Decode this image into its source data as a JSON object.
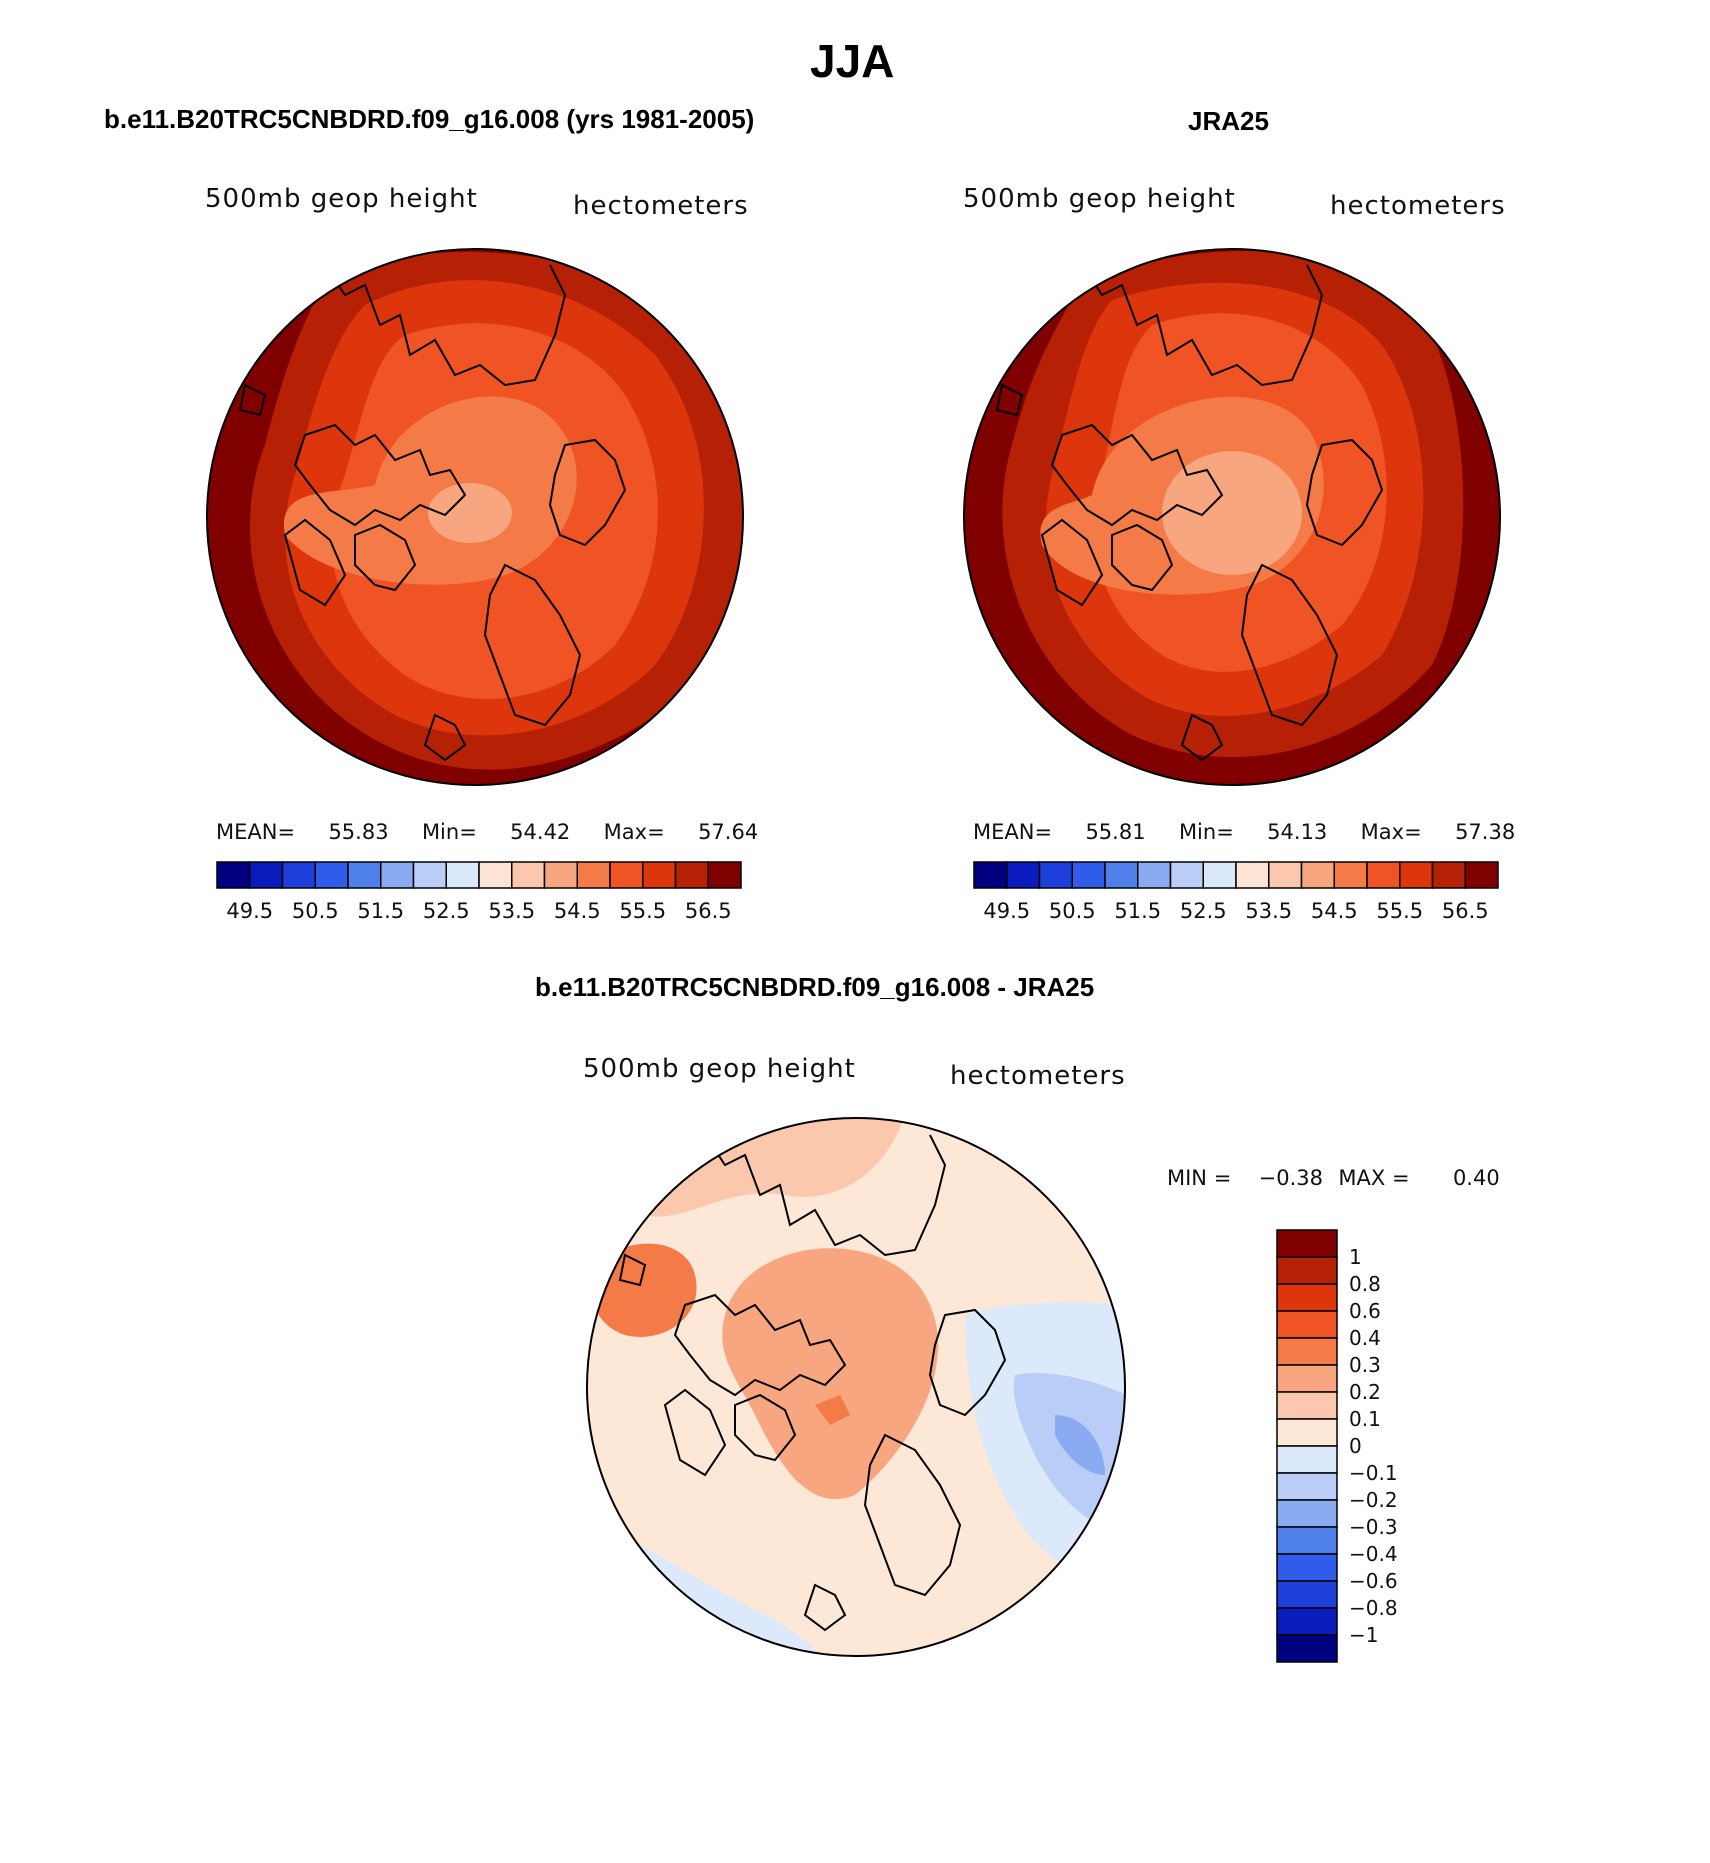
{
  "page_title": "JJA",
  "panels": [
    {
      "title": "b.e11.B20TRC5CNBDRD.f09_g16.008 (yrs 1981-2005)",
      "variable": "500mb geop height",
      "units": "hectometers",
      "stats": {
        "mean_label": "MEAN=",
        "mean": "55.83",
        "min_label": "Min=",
        "min": "54.42",
        "max_label": "Max=",
        "max": "57.64"
      }
    },
    {
      "title": "JRA25",
      "variable": "500mb geop height",
      "units": "hectometers",
      "stats": {
        "mean_label": "MEAN=",
        "mean": "55.81",
        "min_label": "Min=",
        "min": "54.13",
        "max_label": "Max=",
        "max": "57.38"
      }
    },
    {
      "title": "b.e11.B20TRC5CNBDRD.f09_g16.008 - JRA25",
      "variable": "500mb geop height",
      "units": "hectometers",
      "stats": {
        "min_label": "MIN =",
        "min": "−0.38",
        "max_label": "MAX =",
        "max": "0.40"
      }
    }
  ],
  "colorbar_abs": {
    "colors": [
      "#000080",
      "#0b1cbf",
      "#1e3fdc",
      "#2f5ce8",
      "#4f7fe9",
      "#8aabf2",
      "#b9cdf6",
      "#dce9fb",
      "#fde5d6",
      "#fbc8ad",
      "#f7a680",
      "#f47a48",
      "#f05424",
      "#dd360d",
      "#b62106",
      "#800000"
    ],
    "labels": [
      "49.5",
      "50.5",
      "51.5",
      "52.5",
      "53.5",
      "54.5",
      "55.5",
      "56.5"
    ]
  },
  "colorbar_diff": {
    "colors_top_to_bottom": [
      "#800000",
      "#b62106",
      "#dd360d",
      "#f05424",
      "#f47a48",
      "#f7a680",
      "#fbc8ad",
      "#fde8d8",
      "#dce9fb",
      "#b9cdf6",
      "#8aabf2",
      "#4f7fe9",
      "#2f5ce8",
      "#1e3fdc",
      "#0b1cbf",
      "#000080"
    ],
    "labels": [
      "1",
      "0.8",
      "0.6",
      "0.4",
      "0.3",
      "0.2",
      "0.1",
      "0",
      "−0.1",
      "−0.2",
      "−0.3",
      "−0.4",
      "−0.6",
      "−0.8",
      "−1"
    ]
  },
  "icons": {
    "map_1": "arctic-polar-stereographic-map",
    "map_2": "arctic-polar-stereographic-map",
    "map_3": "arctic-polar-stereographic-map"
  }
}
